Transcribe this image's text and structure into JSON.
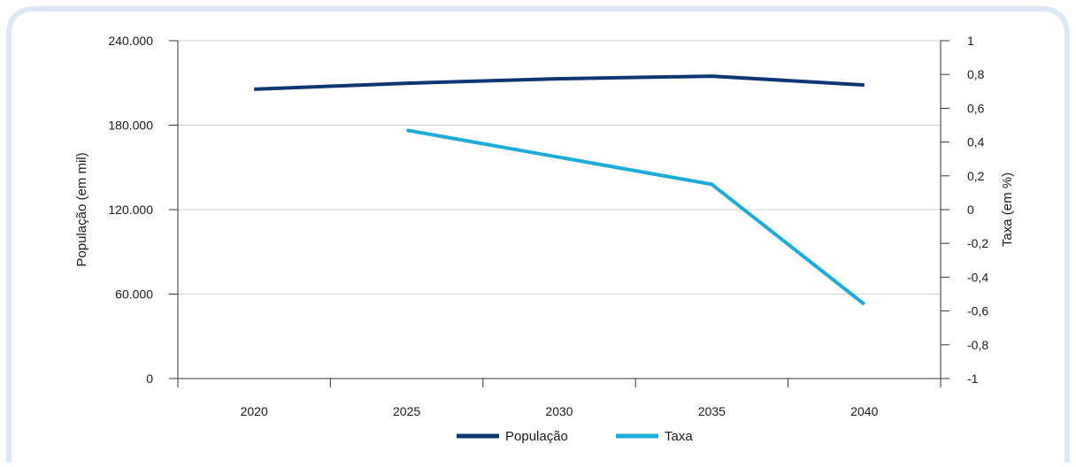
{
  "chart_data": {
    "type": "line",
    "categories": [
      "2020",
      "2025",
      "2030",
      "2035",
      "2040"
    ],
    "series": [
      {
        "name": "População",
        "axis": "left",
        "color": "#0d3675",
        "values": [
          205500,
          209800,
          213000,
          214800,
          208500
        ]
      },
      {
        "name": "Taxa",
        "axis": "right",
        "color": "#1eabd9",
        "values": [
          null,
          0.47,
          0.31,
          0.15,
          -0.56
        ]
      }
    ],
    "yaxis_left": {
      "label": "População (em mil)",
      "range": [
        0,
        240000
      ],
      "ticks": [
        0,
        60000,
        120000,
        180000,
        240000
      ],
      "tick_labels": [
        "0",
        "60.000",
        "120.000",
        "180.000",
        "240.000"
      ]
    },
    "yaxis_right": {
      "label": "Taxa (em %)",
      "range": [
        -1,
        1
      ],
      "ticks": [
        -1,
        -0.8,
        -0.6,
        -0.4,
        -0.2,
        0,
        0.2,
        0.4,
        0.6,
        0.8,
        1
      ],
      "tick_labels": [
        "-1",
        "-0,8",
        "-0,6",
        "-0,4",
        "-0,2",
        "0",
        "0,2",
        "0,4",
        "0,6",
        "0,8",
        "1"
      ]
    },
    "grid": true,
    "legend_position": "bottom-center"
  },
  "colors": {
    "frame": "#dde7f5",
    "grid": "#cfcfcf",
    "axis": "#333333"
  }
}
